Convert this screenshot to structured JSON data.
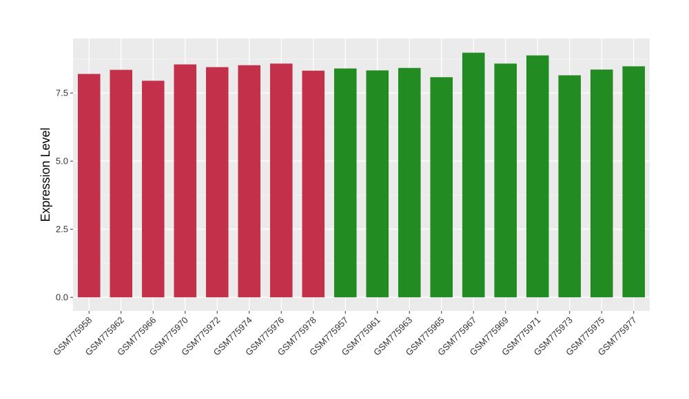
{
  "chart_data": {
    "type": "bar",
    "title": "",
    "xlabel": "",
    "ylabel": "Expression Level",
    "ylim": [
      -0.5,
      9.5
    ],
    "yticks": [
      0.0,
      2.5,
      5.0,
      7.5
    ],
    "ytick_labels": [
      "0.0",
      "2.5",
      "5.0",
      "7.5"
    ],
    "grid": true,
    "background": "#ebebeb",
    "categories": [
      "GSM775958",
      "GSM775962",
      "GSM775966",
      "GSM775970",
      "GSM775972",
      "GSM775974",
      "GSM775976",
      "GSM775978",
      "GSM775957",
      "GSM775961",
      "GSM775963",
      "GSM775965",
      "GSM775967",
      "GSM775969",
      "GSM775971",
      "GSM775973",
      "GSM775975",
      "GSM775977"
    ],
    "values": [
      8.2,
      8.35,
      7.95,
      8.55,
      8.45,
      8.52,
      8.58,
      8.32,
      8.4,
      8.33,
      8.42,
      8.08,
      8.98,
      8.58,
      8.88,
      8.15,
      8.36,
      8.48
    ],
    "colors": [
      "#c3304a",
      "#c3304a",
      "#c3304a",
      "#c3304a",
      "#c3304a",
      "#c3304a",
      "#c3304a",
      "#c3304a",
      "#228b22",
      "#228b22",
      "#228b22",
      "#228b22",
      "#228b22",
      "#228b22",
      "#228b22",
      "#228b22",
      "#228b22",
      "#228b22"
    ]
  }
}
